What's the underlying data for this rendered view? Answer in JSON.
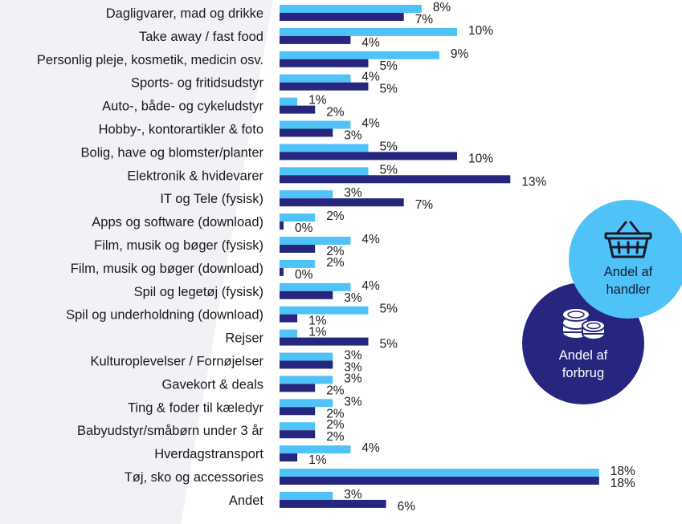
{
  "chart_data": {
    "type": "bar",
    "orientation": "horizontal",
    "categories": [
      "Dagligvarer, mad og drikke",
      "Take away / fast food",
      "Personlig pleje, kosmetik, medicin osv.",
      "Sports- og fritidsudstyr",
      "Auto-, både- og cykeludstyr",
      "Hobby-, kontorartikler & foto",
      "Bolig, have og blomster/planter",
      "Elektronik & hvidevarer",
      "IT og Tele (fysisk)",
      "Apps og software (download)",
      "Film, musik og bøger (fysisk)",
      "Film, musik og bøger (download)",
      "Spil og legetøj (fysisk)",
      "Spil og underholdning (download)",
      "Rejser",
      "Kulturoplevelser / Fornøjelser",
      "Gavekort & deals",
      "Ting & foder til kæledyr",
      "Babyudstyr/småbørn under 3 år",
      "Hverdagstransport",
      "Tøj, sko og accessories",
      "Andet"
    ],
    "series": [
      {
        "name": "Andel af handler",
        "color": "#4fc3f7",
        "values": [
          8,
          10,
          9,
          4,
          1,
          4,
          5,
          5,
          3,
          2,
          4,
          2,
          4,
          5,
          1,
          3,
          3,
          3,
          2,
          4,
          18,
          3
        ],
        "value_labels": [
          "8%",
          "10%",
          "9%",
          "4%",
          "1%",
          "4%",
          "5%",
          "5%",
          "3%",
          "2%",
          "4%",
          "2%",
          "4%",
          "5%",
          "1%",
          "3%",
          "3%",
          "3%",
          "2%",
          "4%",
          "18%",
          "3%"
        ]
      },
      {
        "name": "Andel af forbrug",
        "color": "#27267f",
        "values": [
          7,
          4,
          5,
          5,
          2,
          3,
          10,
          13,
          7,
          0,
          2,
          0,
          3,
          1,
          5,
          3,
          2,
          2,
          2,
          1,
          18,
          6
        ],
        "value_labels": [
          "7%",
          "4%",
          "5%",
          "5%",
          "2%",
          "3%",
          "10%",
          "13%",
          "7%",
          "0%",
          "2%",
          "0%",
          "3%",
          "1%",
          "5%",
          "3%",
          "2%",
          "2%",
          "2%",
          "1%",
          "18%",
          "6%"
        ]
      }
    ],
    "xlabel": "",
    "ylabel": "",
    "grid": false,
    "legend_placement": "right"
  },
  "legend": {
    "handler": {
      "line1": "Andel af",
      "line2": "handler",
      "icon": "basket-icon",
      "color": "#4fc3f7"
    },
    "forbrug": {
      "line1": "Andel af",
      "line2": "forbrug",
      "icon": "coins-icon",
      "color": "#27267f"
    }
  }
}
